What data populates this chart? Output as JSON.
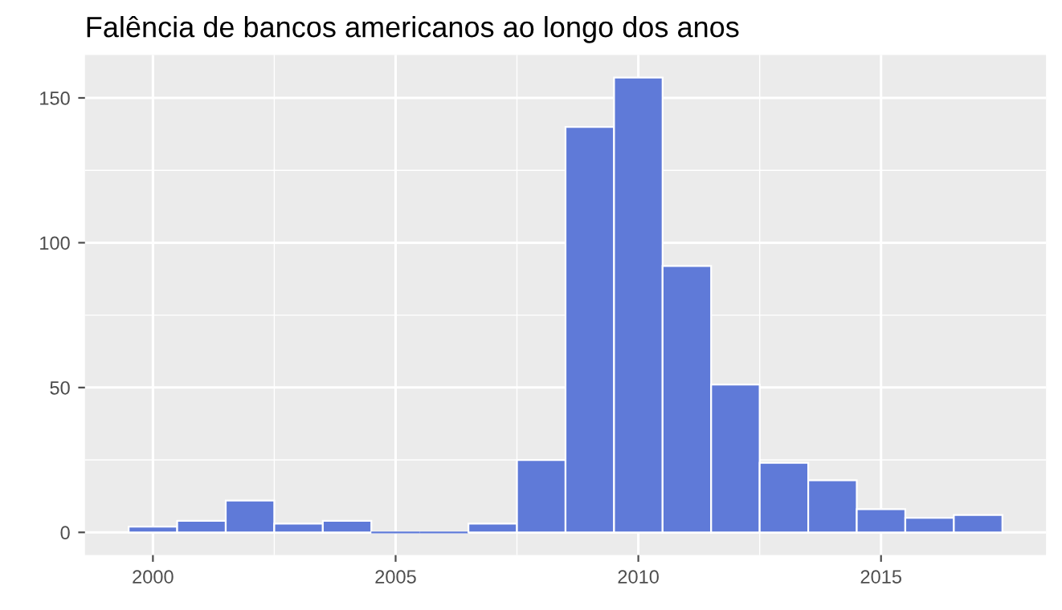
{
  "chart_data": {
    "type": "histogram",
    "title": "Falência de bancos americanos ao longo dos anos",
    "bins": [
      1999.5,
      2000.5,
      2001.5,
      2002.5,
      2003.5,
      2004.5,
      2005.5,
      2006.5,
      2007.5,
      2008.5,
      2009.5,
      2010.5,
      2011.5,
      2012.5,
      2013.5,
      2014.5,
      2015.5,
      2016.5,
      2017.5
    ],
    "values": [
      2,
      4,
      11,
      3,
      4,
      0,
      0,
      3,
      25,
      140,
      157,
      92,
      51,
      24,
      18,
      8,
      5,
      6
    ],
    "color": "#5f7ad8",
    "xlim": [
      1998.6,
      2018.4
    ],
    "xticks": [
      2000,
      2005,
      2010,
      2015
    ],
    "ylim": [
      -7.85,
      164.85
    ],
    "yticks": [
      0,
      50,
      100,
      150
    ],
    "grid": true,
    "legend": false
  }
}
